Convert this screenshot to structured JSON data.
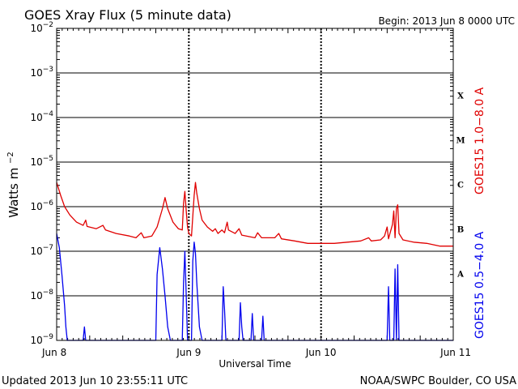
{
  "chart_data": {
    "type": "line",
    "title": "GOES Xray Flux (5 minute data)",
    "begin_label": "Begin:  2013 Jun 8 0000 UTC",
    "ylabel_base": "Watts m",
    "ylabel_sup": "−2",
    "xlabel": "Universal Time",
    "x_ticks": [
      "Jun 8",
      "Jun 9",
      "Jun 10",
      "Jun 11"
    ],
    "x_tick_days": [
      0,
      1,
      2,
      3
    ],
    "xlim_days": [
      0,
      3
    ],
    "y_scale": "log",
    "ylim": [
      1e-09,
      0.01
    ],
    "y_ticks": [
      {
        "exp": -9,
        "base": "10",
        "sup": "−9"
      },
      {
        "exp": -8,
        "base": "10",
        "sup": "−8"
      },
      {
        "exp": -7,
        "base": "10",
        "sup": "−7"
      },
      {
        "exp": -6,
        "base": "10",
        "sup": "−6"
      },
      {
        "exp": -5,
        "base": "10",
        "sup": "−5"
      },
      {
        "exp": -4,
        "base": "10",
        "sup": "−4"
      },
      {
        "exp": -3,
        "base": "10",
        "sup": "−3"
      },
      {
        "exp": -2,
        "base": "10",
        "sup": "−2"
      }
    ],
    "flare_classes": [
      {
        "label": "A",
        "exp": -7.5
      },
      {
        "label": "B",
        "exp": -6.5
      },
      {
        "label": "C",
        "exp": -5.5
      },
      {
        "label": "M",
        "exp": -4.5
      },
      {
        "label": "X",
        "exp": -3.5
      }
    ],
    "series": [
      {
        "name": "GOES15 1.0−8.0 A",
        "color": "#e00000",
        "points": [
          [
            0.0,
            3.5e-06
          ],
          [
            0.03,
            1.8e-06
          ],
          [
            0.06,
            1e-06
          ],
          [
            0.1,
            6.5e-07
          ],
          [
            0.15,
            4.5e-07
          ],
          [
            0.2,
            3.8e-07
          ],
          [
            0.22,
            5e-07
          ],
          [
            0.23,
            3.6e-07
          ],
          [
            0.3,
            3.2e-07
          ],
          [
            0.35,
            3.8e-07
          ],
          [
            0.37,
            3e-07
          ],
          [
            0.45,
            2.5e-07
          ],
          [
            0.55,
            2.2e-07
          ],
          [
            0.6,
            2e-07
          ],
          [
            0.64,
            2.6e-07
          ],
          [
            0.66,
            2e-07
          ],
          [
            0.72,
            2.2e-07
          ],
          [
            0.76,
            3.5e-07
          ],
          [
            0.8,
            9e-07
          ],
          [
            0.82,
            1.6e-06
          ],
          [
            0.84,
            9e-07
          ],
          [
            0.88,
            4.5e-07
          ],
          [
            0.92,
            3.2e-07
          ],
          [
            0.95,
            3e-07
          ],
          [
            0.96,
            1.2e-06
          ],
          [
            0.97,
            2.2e-06
          ],
          [
            0.98,
            8e-07
          ],
          [
            0.99,
            3.5e-07
          ],
          [
            1.0,
            2.5e-07
          ],
          [
            1.02,
            2.2e-07
          ],
          [
            1.04,
            1.8e-06
          ],
          [
            1.05,
            3.5e-06
          ],
          [
            1.06,
            2e-06
          ],
          [
            1.08,
            9e-07
          ],
          [
            1.1,
            5e-07
          ],
          [
            1.14,
            3.5e-07
          ],
          [
            1.18,
            2.8e-07
          ],
          [
            1.2,
            3.2e-07
          ],
          [
            1.22,
            2.5e-07
          ],
          [
            1.25,
            3e-07
          ],
          [
            1.27,
            2.6e-07
          ],
          [
            1.29,
            4.5e-07
          ],
          [
            1.3,
            3e-07
          ],
          [
            1.35,
            2.5e-07
          ],
          [
            1.38,
            3.2e-07
          ],
          [
            1.4,
            2.3e-07
          ],
          [
            1.5,
            2e-07
          ],
          [
            1.52,
            2.6e-07
          ],
          [
            1.55,
            2e-07
          ],
          [
            1.65,
            2e-07
          ],
          [
            1.68,
            2.5e-07
          ],
          [
            1.7,
            1.9e-07
          ],
          [
            1.8,
            1.7e-07
          ],
          [
            1.9,
            1.5e-07
          ],
          [
            2.0,
            1.5e-07
          ],
          [
            2.1,
            1.5e-07
          ],
          [
            2.2,
            1.6e-07
          ],
          [
            2.3,
            1.7e-07
          ],
          [
            2.36,
            2e-07
          ],
          [
            2.38,
            1.7e-07
          ],
          [
            2.45,
            1.8e-07
          ],
          [
            2.48,
            2.2e-07
          ],
          [
            2.5,
            3.5e-07
          ],
          [
            2.51,
            1.9e-07
          ],
          [
            2.54,
            4e-07
          ],
          [
            2.55,
            8e-07
          ],
          [
            2.56,
            2e-07
          ],
          [
            2.57,
            9e-07
          ],
          [
            2.58,
            1.1e-06
          ],
          [
            2.59,
            2.5e-07
          ],
          [
            2.62,
            1.8e-07
          ],
          [
            2.7,
            1.6e-07
          ],
          [
            2.8,
            1.5e-07
          ],
          [
            2.9,
            1.3e-07
          ],
          [
            3.0,
            1.3e-07
          ]
        ]
      },
      {
        "name": "GOES15 0.5−4.0 A",
        "color": "#0000ee",
        "points": [
          [
            0.0,
            2.5e-07
          ],
          [
            0.02,
            1.2e-07
          ],
          [
            0.04,
            3e-08
          ],
          [
            0.06,
            6e-09
          ],
          [
            0.07,
            2e-09
          ],
          [
            0.08,
            1e-09
          ],
          [
            0.2,
            1e-09
          ],
          [
            0.21,
            2e-09
          ],
          [
            0.22,
            1e-09
          ],
          [
            0.45,
            1e-09
          ],
          [
            0.75,
            1e-09
          ],
          [
            0.76,
            3e-08
          ],
          [
            0.78,
            1.2e-07
          ],
          [
            0.8,
            4e-08
          ],
          [
            0.82,
            1e-08
          ],
          [
            0.84,
            2e-09
          ],
          [
            0.86,
            1e-09
          ],
          [
            0.95,
            1e-09
          ],
          [
            0.96,
            2e-08
          ],
          [
            0.97,
            1e-07
          ],
          [
            0.98,
            1e-08
          ],
          [
            0.99,
            1e-09
          ],
          [
            1.02,
            1e-09
          ],
          [
            1.03,
            6e-08
          ],
          [
            1.04,
            1.6e-07
          ],
          [
            1.05,
            9e-08
          ],
          [
            1.06,
            2e-08
          ],
          [
            1.08,
            2e-09
          ],
          [
            1.1,
            1e-09
          ],
          [
            1.25,
            1e-09
          ],
          [
            1.26,
            1.6e-08
          ],
          [
            1.27,
            5e-09
          ],
          [
            1.28,
            1e-09
          ],
          [
            1.38,
            1e-09
          ],
          [
            1.39,
            7e-09
          ],
          [
            1.4,
            2e-09
          ],
          [
            1.41,
            1e-09
          ],
          [
            1.47,
            1e-09
          ],
          [
            1.48,
            4e-09
          ],
          [
            1.49,
            1e-09
          ],
          [
            1.55,
            1e-09
          ],
          [
            1.56,
            3.5e-09
          ],
          [
            1.57,
            1e-09
          ],
          [
            2.5,
            1e-09
          ],
          [
            2.51,
            1.6e-08
          ],
          [
            2.52,
            1e-09
          ],
          [
            2.55,
            1e-09
          ],
          [
            2.56,
            4e-08
          ],
          [
            2.57,
            1e-09
          ],
          [
            2.58,
            5e-08
          ],
          [
            2.59,
            1e-09
          ],
          [
            3.0,
            1e-09
          ]
        ]
      }
    ]
  },
  "footer": {
    "updated": "Updated 2013 Jun 10 23:55:11 UTC",
    "credit": "NOAA/SWPC Boulder, CO USA"
  }
}
